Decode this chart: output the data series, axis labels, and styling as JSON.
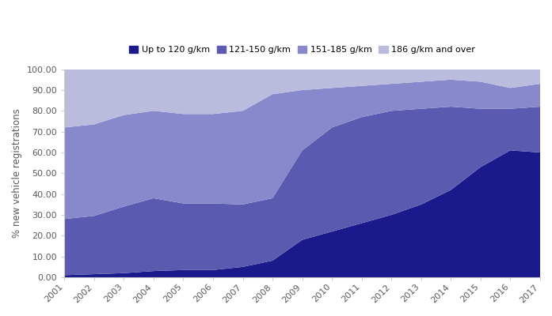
{
  "years": [
    2001,
    2002,
    2003,
    2004,
    2005,
    2006,
    2007,
    2008,
    2009,
    2010,
    2011,
    2012,
    2013,
    2014,
    2015,
    2016,
    2017
  ],
  "up_to_120": [
    1.0,
    1.5,
    2.0,
    3.0,
    3.5,
    3.5,
    5.0,
    8.0,
    18.0,
    22.0,
    26.0,
    30.0,
    35.0,
    42.0,
    53.0,
    61.0,
    60.0
  ],
  "band_121_150": [
    27.0,
    28.0,
    32.0,
    35.0,
    32.0,
    32.0,
    30.0,
    30.0,
    43.0,
    50.0,
    51.0,
    50.0,
    46.0,
    40.0,
    28.0,
    20.0,
    22.0
  ],
  "band_151_185": [
    44.0,
    44.0,
    44.0,
    42.0,
    43.0,
    43.0,
    45.0,
    50.0,
    29.0,
    19.0,
    15.0,
    13.0,
    13.0,
    13.0,
    13.0,
    10.0,
    11.0
  ],
  "band_186_over": [
    28.0,
    26.5,
    22.0,
    20.0,
    21.5,
    21.5,
    20.0,
    12.0,
    10.0,
    9.0,
    8.0,
    7.0,
    6.0,
    5.0,
    6.0,
    9.0,
    7.0
  ],
  "colors": [
    "#1a1a8c",
    "#5a5ab0",
    "#8888cc",
    "#bbbbdd"
  ],
  "legend_labels": [
    "Up to 120 g/km",
    "121-150 g/km",
    "151-185 g/km",
    "186 g/km and over"
  ],
  "ylabel": "% new vehicle registrations",
  "ylim": [
    0,
    100
  ],
  "yticks": [
    0,
    10,
    20,
    30,
    40,
    50,
    60,
    70,
    80,
    90,
    100
  ],
  "ytick_labels": [
    "0.00",
    "10.00",
    "20.00",
    "30.00",
    "40.00",
    "50.00",
    "60.00",
    "70.00",
    "80.00",
    "90.00",
    "100.00"
  ],
  "background_color": "#ffffff",
  "plot_bg_color": "#ffffff",
  "figsize": [
    6.97,
    4.0
  ],
  "dpi": 100
}
